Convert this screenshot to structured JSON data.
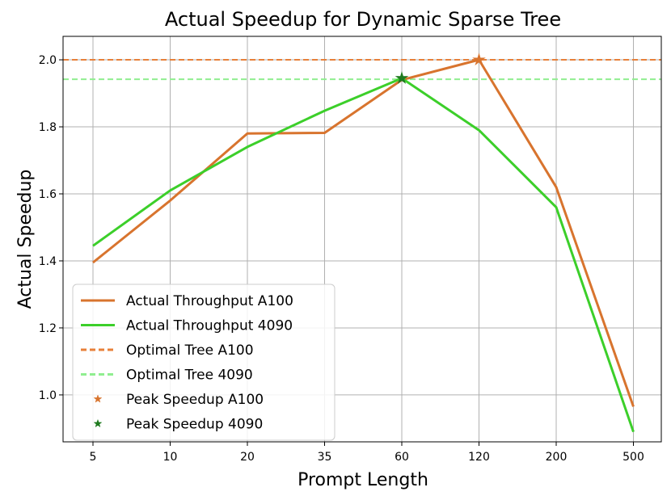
{
  "chart_data": {
    "type": "line",
    "title": "Actual Speedup for Dynamic Sparse Tree",
    "xlabel": "Prompt Length",
    "ylabel": "Actual Speedup",
    "categories": [
      "5",
      "10",
      "20",
      "35",
      "60",
      "120",
      "200",
      "500"
    ],
    "ylim": [
      0.86,
      2.07
    ],
    "yticks": [
      "1.0",
      "1.2",
      "1.4",
      "1.6",
      "1.8",
      "2.0"
    ],
    "grid": true,
    "legend_position": "lower-left",
    "series": [
      {
        "name": "Actual Throughput A100",
        "color": "#d8742e",
        "style": "solid",
        "values": [
          1.395,
          1.58,
          1.78,
          1.782,
          1.94,
          2.0,
          1.62,
          0.965
        ]
      },
      {
        "name": "Actual Throughput 4090",
        "color": "#3ccf2a",
        "style": "solid",
        "values": [
          1.445,
          1.61,
          1.74,
          1.848,
          1.945,
          1.79,
          1.56,
          0.89
        ]
      }
    ],
    "reference_lines": [
      {
        "name": "Optimal Tree A100",
        "color": "#e8803a",
        "style": "dashed",
        "y": 2.0
      },
      {
        "name": "Optimal Tree 4090",
        "color": "#90ee90",
        "style": "dashed",
        "y": 1.942
      }
    ],
    "markers": [
      {
        "name": "Peak Speedup A100",
        "color": "#d8742e",
        "symbol": "star",
        "category": "120",
        "y": 2.0
      },
      {
        "name": "Peak Speedup 4090",
        "color": "#1f7a1f",
        "symbol": "star",
        "category": "60",
        "y": 1.945
      }
    ]
  }
}
